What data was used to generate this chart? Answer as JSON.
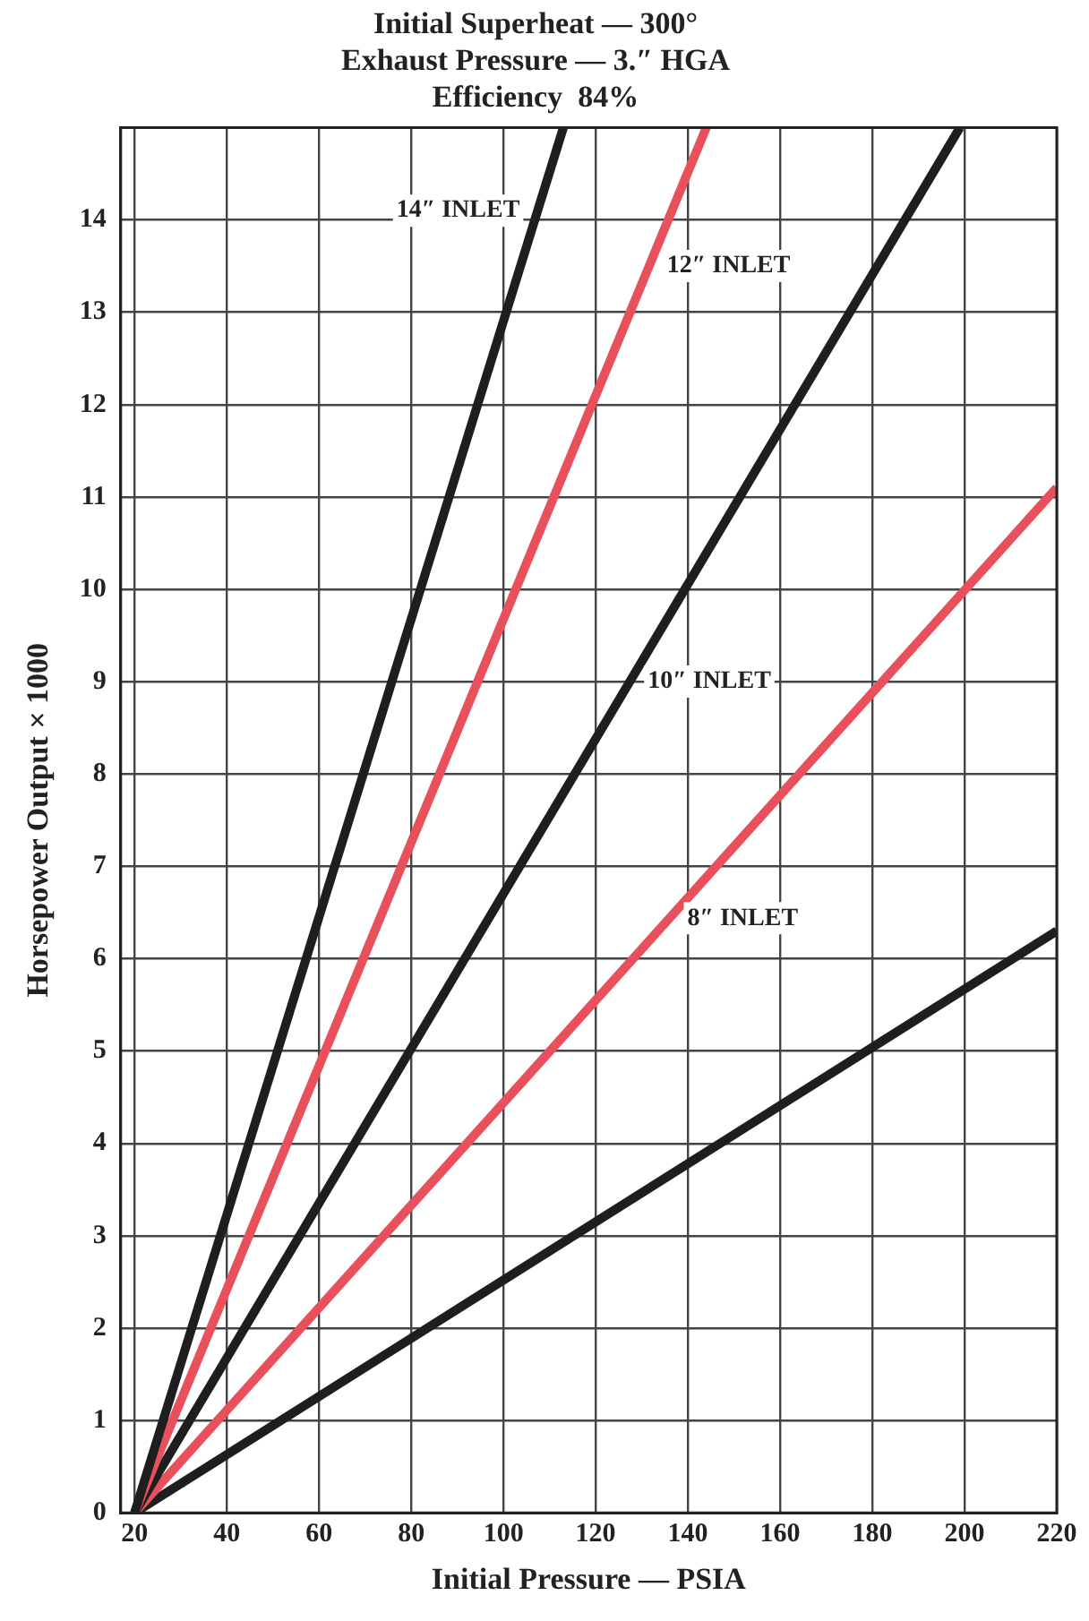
{
  "chart_data": {
    "type": "line",
    "title": "Initial Superheat — 300°\nExhaust Pressure — 3.″ HGA\nEfficiency  84%",
    "xlabel": "Initial Pressure — PSIA",
    "ylabel": "Horsepower Output × 1000",
    "xlim": [
      17,
      220
    ],
    "xticks": [
      20,
      40,
      60,
      80,
      100,
      120,
      140,
      160,
      180,
      200,
      220
    ],
    "ylim": [
      0,
      15
    ],
    "yticks": [
      0,
      1,
      2,
      3,
      4,
      5,
      6,
      7,
      8,
      9,
      10,
      11,
      12,
      13,
      14
    ],
    "grid": true,
    "legend": false,
    "marker": "none",
    "line_style": "solid",
    "series": [
      {
        "name": "14″ INLET",
        "color": "#1e1e1e",
        "x": [
          20,
          113
        ],
        "values": [
          0,
          15
        ]
      },
      {
        "name": "12″ INLET",
        "color": "#e8505b",
        "x": [
          20,
          144
        ],
        "values": [
          0,
          15
        ]
      },
      {
        "name": "10″ INLET",
        "color": "#1e1e1e",
        "x": [
          20,
          199
        ],
        "values": [
          0,
          15
        ]
      },
      {
        "name": "8″ INLET",
        "color": "#e8505b",
        "x": [
          20,
          220
        ],
        "values": [
          0,
          11.1
        ]
      },
      {
        "color": "#1e1e1e",
        "x": [
          20,
          220
        ],
        "values": [
          0,
          6.3
        ]
      }
    ]
  }
}
